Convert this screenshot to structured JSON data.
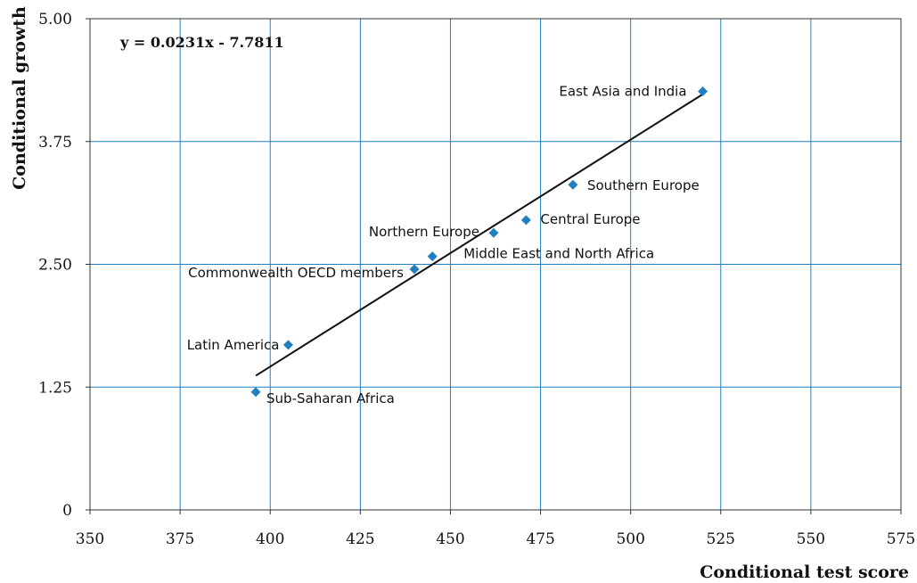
{
  "chart_data": {
    "type": "scatter",
    "xlabel": "Conditional test score",
    "ylabel": "Conditional growth",
    "xlim": [
      350,
      575
    ],
    "ylim": [
      0,
      5
    ],
    "x_ticks": [
      "350",
      "375",
      "400",
      "425",
      "450",
      "475",
      "500",
      "525",
      "550",
      "575"
    ],
    "y_ticks": [
      "0",
      "1.25",
      "2.50",
      "3.75",
      "5.00"
    ],
    "grid": true,
    "marker_color": "#1f7fc1",
    "gridline_color": "#1f7fc1",
    "trendline_color": "#111111",
    "annotation": "y = 0.0231x - 7.7811",
    "trendline": {
      "slope": 0.0231,
      "intercept": -7.7811,
      "x_range": [
        396,
        520
      ]
    },
    "points": [
      {
        "label": "East Asia and India",
        "x": 520,
        "y": 4.26
      },
      {
        "label": "Southern Europe",
        "x": 484,
        "y": 3.31
      },
      {
        "label": "Central Europe",
        "x": 471,
        "y": 2.95
      },
      {
        "label": "Northern Europe",
        "x": 462,
        "y": 2.82
      },
      {
        "label": "Middle East and North Africa",
        "x": 445,
        "y": 2.58
      },
      {
        "label": "Commonwealth OECD members",
        "x": 440,
        "y": 2.45
      },
      {
        "label": "Latin America",
        "x": 405,
        "y": 1.68
      },
      {
        "label": "Sub-Saharan Africa",
        "x": 396,
        "y": 1.2
      }
    ]
  }
}
